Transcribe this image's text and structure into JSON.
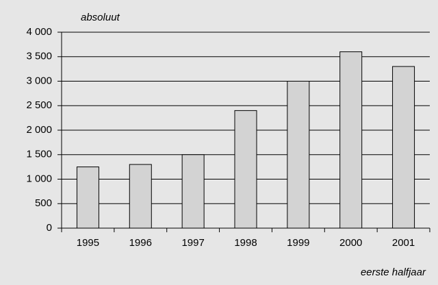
{
  "chart_data": {
    "type": "bar",
    "y_label": "absoluut",
    "x_label": "eerste halfjaar",
    "categories": [
      "1995",
      "1996",
      "1997",
      "1998",
      "1999",
      "2000",
      "2001"
    ],
    "values": [
      1250,
      1300,
      1500,
      2400,
      3000,
      3600,
      3300
    ],
    "color": "#d3d3d3",
    "ylim": [
      0,
      4000
    ],
    "yticks": [
      0,
      500,
      {
        "value": 1000,
        "label": "1 000"
      },
      {
        "value": 1500,
        "label": "1 500"
      },
      {
        "value": 2000,
        "label": "2 000"
      },
      {
        "value": 2500,
        "label": "2 500"
      },
      {
        "value": 3000,
        "label": "3 000"
      },
      {
        "value": 3500,
        "label": "3 500"
      },
      {
        "value": 4000,
        "label": "4 000"
      }
    ],
    "grid": true
  }
}
